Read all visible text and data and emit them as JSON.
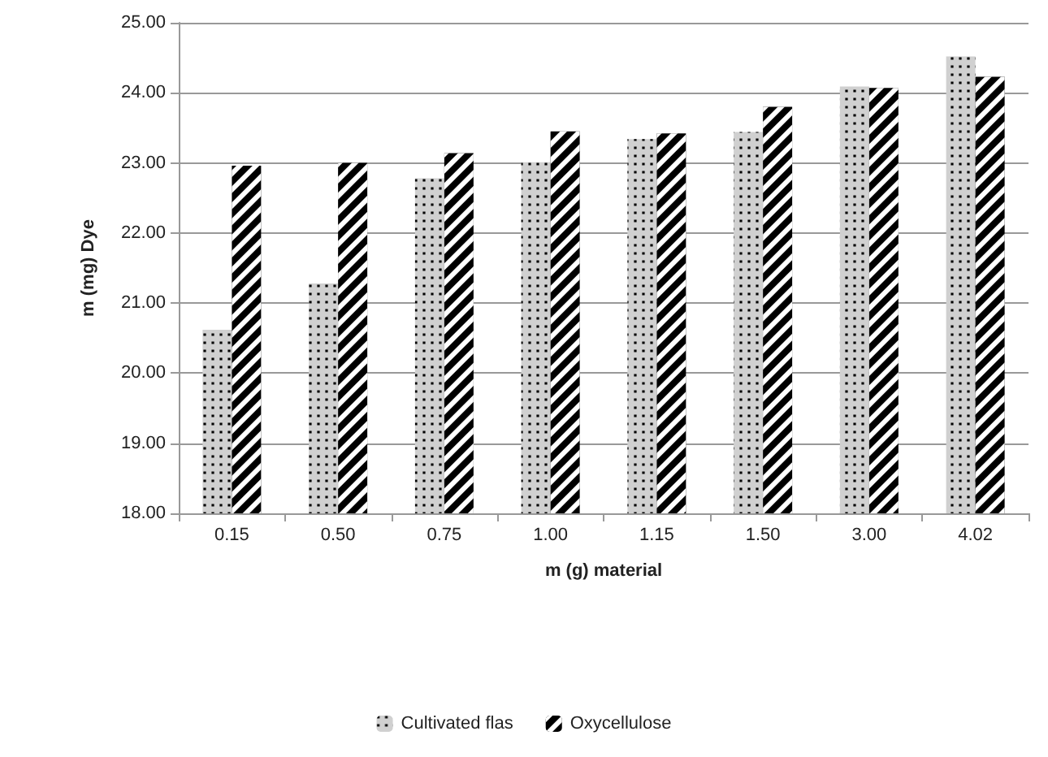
{
  "chart_data": {
    "type": "bar",
    "xlabel": "m (g) material",
    "ylabel": "m (mg) Dye",
    "categories": [
      "0.15",
      "0.50",
      "0.75",
      "1.00",
      "1.15",
      "1.50",
      "3.00",
      "4.02"
    ],
    "series": [
      {
        "name": "Cultivated flas",
        "color": "#d0d0d0",
        "values": [
          20.62,
          21.28,
          22.78,
          23.01,
          23.34,
          23.44,
          24.09,
          24.52
        ]
      },
      {
        "name": "Oxycellulose",
        "color": "#000000",
        "values": [
          22.96,
          23.0,
          23.14,
          23.45,
          23.42,
          23.8,
          24.07,
          24.23
        ]
      }
    ],
    "ylim": [
      18,
      25
    ],
    "yticks": [
      {
        "value": 18,
        "label": "18.00"
      },
      {
        "value": 19,
        "label": "19.00"
      },
      {
        "value": 20,
        "label": "20.00"
      },
      {
        "value": 21,
        "label": "21.00"
      },
      {
        "value": 22,
        "label": "22.00"
      },
      {
        "value": 23,
        "label": "23.00"
      },
      {
        "value": 24,
        "label": "24.00"
      },
      {
        "value": 25,
        "label": "25.00"
      }
    ],
    "grid": "y",
    "legend": "bottom"
  }
}
